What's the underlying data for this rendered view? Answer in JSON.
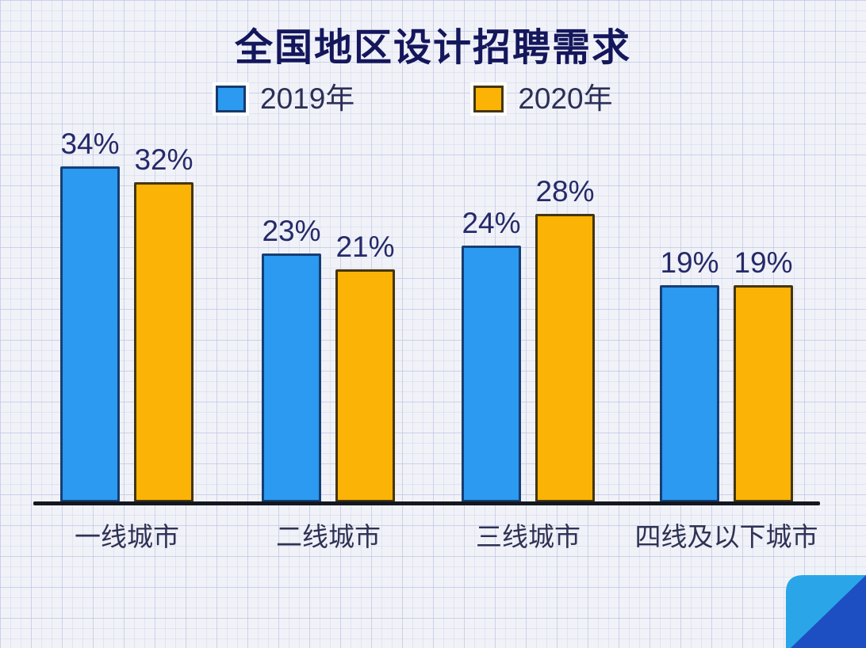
{
  "title": "全国地区设计招聘需求",
  "legend": {
    "items": [
      {
        "label": "2019年",
        "color": "#2b9af0",
        "border_color": "#173a6b"
      },
      {
        "label": "2020年",
        "color": "#fbb306",
        "border_color": "#44350f"
      }
    ]
  },
  "chart_data": {
    "type": "bar",
    "title": "全国地区设计招聘需求",
    "categories": [
      "一线城市",
      "二线城市",
      "三线城市",
      "四线及以下城市"
    ],
    "series": [
      {
        "name": "2019年",
        "color": "#2b9af0",
        "border_color": "#163e75",
        "values": [
          34,
          23,
          24,
          19
        ]
      },
      {
        "name": "2020年",
        "color": "#fbb306",
        "border_color": "#44350f",
        "values": [
          32,
          21,
          28,
          19
        ]
      }
    ],
    "unit": "%",
    "value_labels": true,
    "ylim": [
      0,
      40
    ],
    "grid": "graph-paper-background",
    "legend_position": "top",
    "axis_line": "bottom-only"
  },
  "colors": {
    "title": "#15175c",
    "value_label": "#262a68",
    "category_label": "#2f3254",
    "axis_line": "#14171f",
    "background": "#f1f2f8"
  },
  "decoration": {
    "corner_light": "#2aa6e8",
    "corner_dark": "#1d4fc2"
  }
}
